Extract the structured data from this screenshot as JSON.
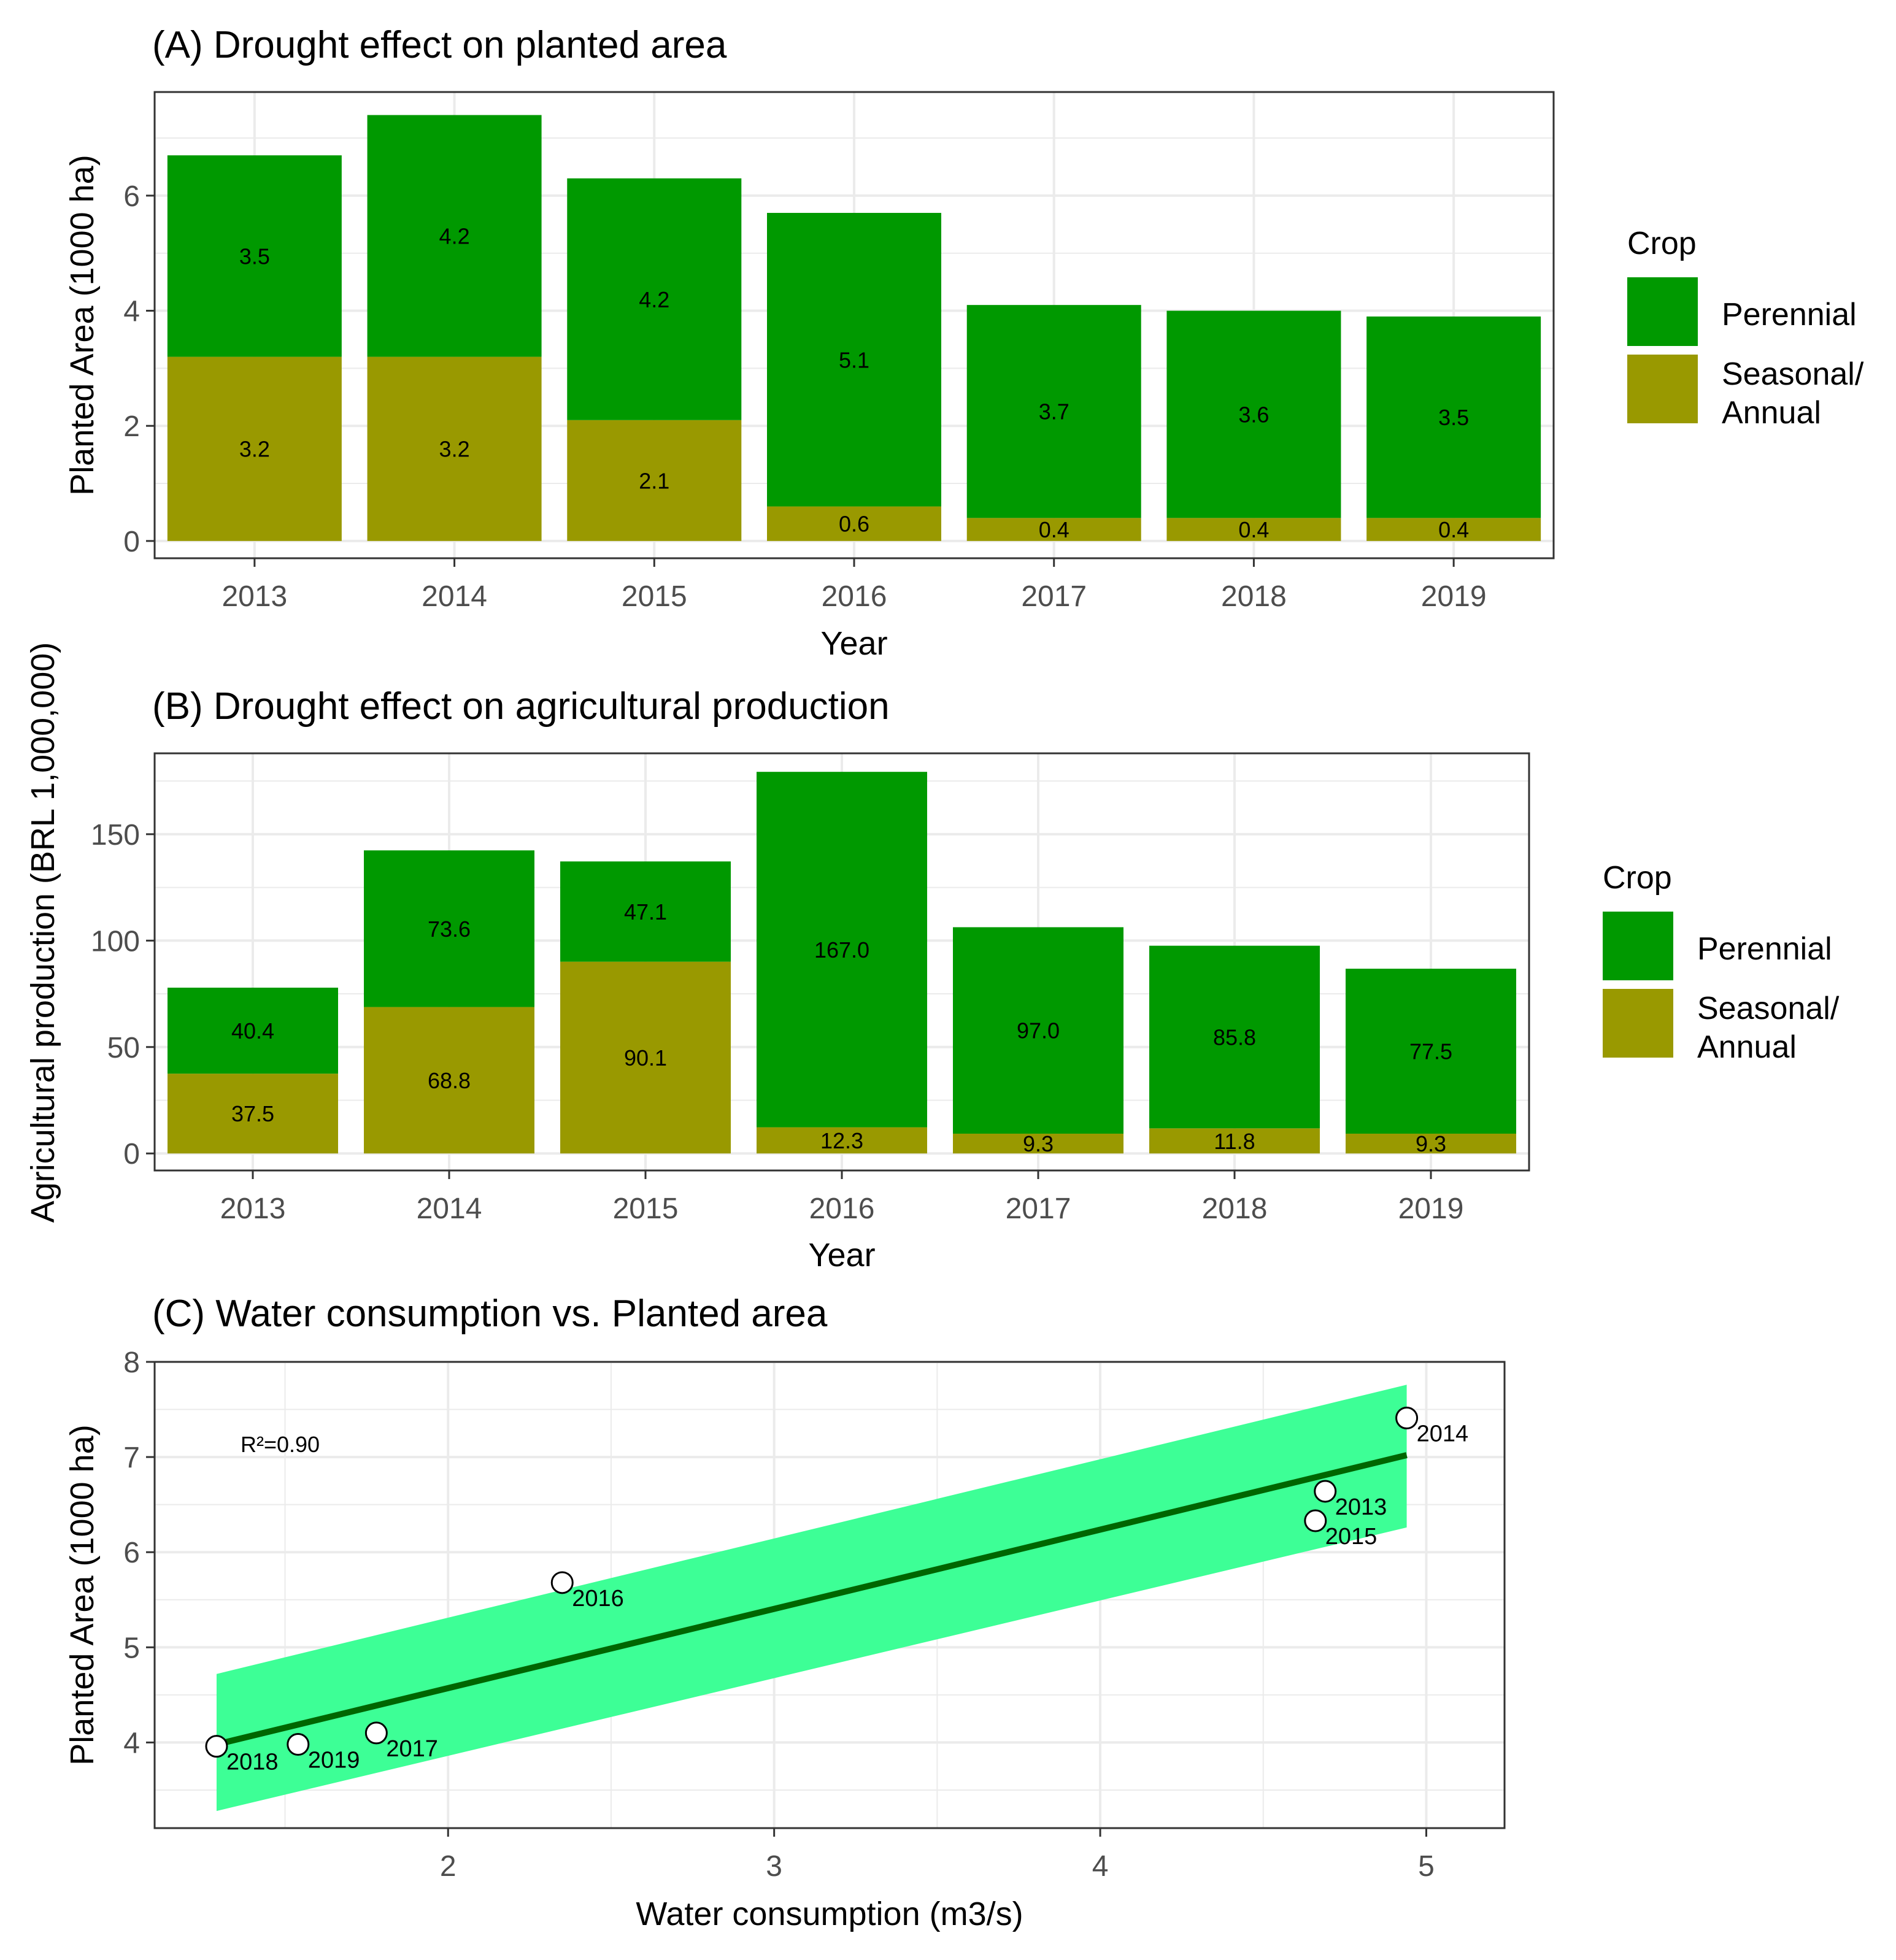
{
  "colors": {
    "perennial": "#009900",
    "seasonal": "#999900",
    "ribbon": "#3dff96",
    "fit_line": "#006600",
    "grid": "#ebebeb",
    "panel_border": "#333333"
  },
  "chart_data": [
    {
      "type": "bar",
      "stacked": true,
      "title": "(A) Drought effect on planted area",
      "xlabel": "Year",
      "ylabel": "Planted Area (1000 ha)",
      "categories": [
        "2013",
        "2014",
        "2015",
        "2016",
        "2017",
        "2018",
        "2019"
      ],
      "series": [
        {
          "name": "Seasonal/ Annual",
          "values": [
            3.2,
            3.2,
            2.1,
            0.6,
            0.4,
            0.4,
            0.4
          ],
          "labels": [
            "3.2",
            "3.2",
            "2.1",
            "0.6",
            "0.4",
            "0.4",
            "0.4"
          ]
        },
        {
          "name": "Perennial",
          "values": [
            3.5,
            4.2,
            4.2,
            5.1,
            3.7,
            3.6,
            3.5
          ],
          "labels": [
            "3.5",
            "4.2",
            "4.2",
            "5.1",
            "3.7",
            "3.6",
            "3.5"
          ]
        }
      ],
      "ylim": [
        -0.3,
        7.8
      ],
      "yticks": [
        0,
        2,
        4,
        6
      ],
      "legend": {
        "title": "Crop",
        "position": "right",
        "items": [
          "Perennial",
          "Seasonal/",
          "Annual"
        ]
      }
    },
    {
      "type": "bar",
      "stacked": true,
      "title": "(B) Drought effect on agricultural production",
      "xlabel": "Year",
      "ylabel": "Agricultural production (BRL 1,000,000)",
      "categories": [
        "2013",
        "2014",
        "2015",
        "2016",
        "2017",
        "2018",
        "2019"
      ],
      "series": [
        {
          "name": "Seasonal/ Annual",
          "values": [
            37.5,
            68.8,
            90.1,
            12.3,
            9.3,
            11.8,
            9.3
          ],
          "labels": [
            "37.5",
            "68.8",
            "90.1",
            "12.3",
            "9.3",
            "11.8",
            "9.3"
          ]
        },
        {
          "name": "Perennial",
          "values": [
            40.4,
            73.6,
            47.1,
            167.0,
            97.0,
            85.8,
            77.5
          ],
          "labels": [
            "40.4",
            "73.6",
            "47.1",
            "167.0",
            "97.0",
            "85.8",
            "77.5"
          ]
        }
      ],
      "ylim": [
        -8,
        188
      ],
      "yticks": [
        0,
        50,
        100,
        150
      ],
      "legend": {
        "title": "Crop",
        "position": "right",
        "items": [
          "Perennial",
          "Seasonal/",
          "Annual"
        ]
      }
    },
    {
      "type": "scatter",
      "title": "(C) Water consumption vs. Planted area",
      "xlabel": "Water consumption (m3/s)",
      "ylabel": "Planted Area (1000 ha)",
      "xlim": [
        1.1,
        5.24
      ],
      "ylim": [
        3.1,
        8.0
      ],
      "xticks": [
        2,
        3,
        4,
        5
      ],
      "yticks": [
        4,
        5,
        6,
        7,
        8
      ],
      "annotation": "R²=0.90",
      "points": [
        {
          "label": "2013",
          "x": 4.69,
          "y": 6.64
        },
        {
          "label": "2014",
          "x": 4.94,
          "y": 7.41
        },
        {
          "label": "2015",
          "x": 4.66,
          "y": 6.33
        },
        {
          "label": "2016",
          "x": 2.35,
          "y": 5.68
        },
        {
          "label": "2017",
          "x": 1.78,
          "y": 4.1
        },
        {
          "label": "2018",
          "x": 1.29,
          "y": 3.96
        },
        {
          "label": "2019",
          "x": 1.54,
          "y": 3.98
        }
      ],
      "fit": {
        "x": [
          1.29,
          4.94
        ],
        "y": [
          3.98,
          7.02
        ]
      },
      "ribbon": {
        "x": [
          1.29,
          4.94
        ],
        "upper": [
          4.72,
          7.76
        ],
        "lower": [
          3.28,
          6.26
        ]
      }
    }
  ]
}
